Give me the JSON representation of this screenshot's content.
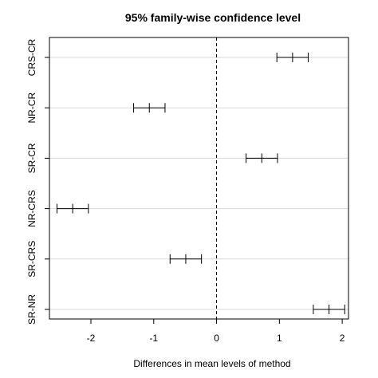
{
  "chart_data": {
    "type": "interval",
    "title": "95% family-wise confidence level",
    "xlabel": "Differences in mean levels of method",
    "ylabel": "",
    "xlim": [
      -2.66,
      2.1
    ],
    "x_ticks": [
      -2,
      -1,
      0,
      1,
      2
    ],
    "reference_line": 0,
    "grid": "horizontal",
    "categories": [
      "CRS-CR",
      "NR-CR",
      "SR-CR",
      "NR-CRS",
      "SR-CRS",
      "SR-NR"
    ],
    "estimates": [
      1.21,
      -1.07,
      0.72,
      -2.29,
      -0.49,
      1.79
    ],
    "lower": [
      0.96,
      -1.32,
      0.47,
      -2.54,
      -0.74,
      1.54
    ],
    "upper": [
      1.46,
      -0.82,
      0.97,
      -2.04,
      -0.24,
      2.04
    ]
  }
}
